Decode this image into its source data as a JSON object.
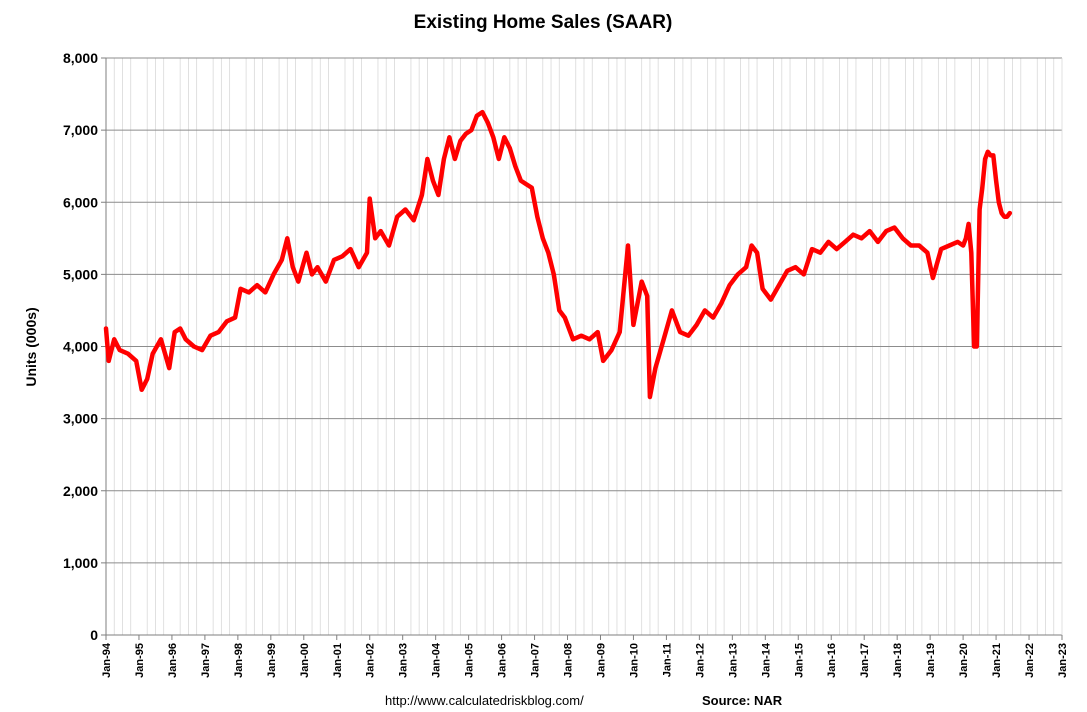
{
  "colors": {
    "series": "#ff0000",
    "grid_major": "#8c8c8c",
    "grid_minor": "#d9d9d9",
    "axis": "#7f7f7f"
  },
  "footer": {
    "url": "http://www.calculatedriskblog.com/",
    "source": "Source: NAR"
  },
  "chart_data": {
    "type": "line",
    "title": "Existing Home Sales (SAAR)",
    "xlabel": "",
    "ylabel": "Units (000s)",
    "ylim": [
      0,
      8000
    ],
    "xlim": [
      "1994-01",
      "2023-01"
    ],
    "grid": true,
    "legend": "none",
    "yticks": [
      0,
      1000,
      2000,
      3000,
      4000,
      5000,
      6000,
      7000,
      8000
    ],
    "ytick_labels": [
      "0",
      "1,000",
      "2,000",
      "3,000",
      "4,000",
      "5,000",
      "6,000",
      "7,000",
      "8,000"
    ],
    "xticks": [
      "1994-01",
      "1995-01",
      "1996-01",
      "1997-01",
      "1998-01",
      "1999-01",
      "2000-01",
      "2001-01",
      "2002-01",
      "2003-01",
      "2004-01",
      "2005-01",
      "2006-01",
      "2007-01",
      "2008-01",
      "2009-01",
      "2010-01",
      "2011-01",
      "2012-01",
      "2013-01",
      "2014-01",
      "2015-01",
      "2016-01",
      "2017-01",
      "2018-01",
      "2019-01",
      "2020-01",
      "2021-01",
      "2022-01",
      "2023-01"
    ],
    "xtick_labels": [
      "Jan-94",
      "Jan-95",
      "Jan-96",
      "Jan-97",
      "Jan-98",
      "Jan-99",
      "Jan-00",
      "Jan-01",
      "Jan-02",
      "Jan-03",
      "Jan-04",
      "Jan-05",
      "Jan-06",
      "Jan-07",
      "Jan-08",
      "Jan-09",
      "Jan-10",
      "Jan-11",
      "Jan-12",
      "Jan-13",
      "Jan-14",
      "Jan-15",
      "Jan-16",
      "Jan-17",
      "Jan-18",
      "Jan-19",
      "Jan-20",
      "Jan-21",
      "Jan-22",
      "Jan-23"
    ],
    "series": [
      {
        "x": [
          "1994-01",
          "1994-02",
          "1994-04",
          "1994-06",
          "1994-09",
          "1994-12",
          "1995-02",
          "1995-04",
          "1995-06",
          "1995-09",
          "1995-12",
          "1996-02",
          "1996-04",
          "1996-06",
          "1996-09",
          "1996-12",
          "1997-03",
          "1997-06",
          "1997-09",
          "1997-12",
          "1998-02",
          "1998-05",
          "1998-08",
          "1998-11",
          "1999-02",
          "1999-05",
          "1999-07",
          "1999-09",
          "1999-11",
          "2000-02",
          "2000-04",
          "2000-06",
          "2000-09",
          "2000-12",
          "2001-03",
          "2001-06",
          "2001-09",
          "2001-12",
          "2002-01",
          "2002-03",
          "2002-05",
          "2002-08",
          "2002-11",
          "2003-02",
          "2003-05",
          "2003-08",
          "2003-10",
          "2003-12",
          "2004-02",
          "2004-04",
          "2004-06",
          "2004-08",
          "2004-10",
          "2004-12",
          "2005-02",
          "2005-04",
          "2005-06",
          "2005-08",
          "2005-10",
          "2005-12",
          "2006-02",
          "2006-04",
          "2006-06",
          "2006-08",
          "2006-10",
          "2006-12",
          "2007-02",
          "2007-04",
          "2007-06",
          "2007-08",
          "2007-10",
          "2007-12",
          "2008-03",
          "2008-06",
          "2008-09",
          "2008-12",
          "2009-02",
          "2009-05",
          "2009-08",
          "2009-11",
          "2010-01",
          "2010-04",
          "2010-06",
          "2010-07",
          "2010-09",
          "2010-12",
          "2011-03",
          "2011-06",
          "2011-09",
          "2011-12",
          "2012-03",
          "2012-06",
          "2012-09",
          "2012-12",
          "2013-03",
          "2013-06",
          "2013-08",
          "2013-10",
          "2013-12",
          "2014-03",
          "2014-06",
          "2014-09",
          "2014-12",
          "2015-03",
          "2015-06",
          "2015-09",
          "2015-12",
          "2016-03",
          "2016-06",
          "2016-09",
          "2016-12",
          "2017-03",
          "2017-06",
          "2017-09",
          "2017-12",
          "2018-03",
          "2018-06",
          "2018-09",
          "2018-12",
          "2019-02",
          "2019-05",
          "2019-08",
          "2019-11",
          "2020-01",
          "2020-02",
          "2020-03",
          "2020-04",
          "2020-05",
          "2020-06",
          "2020-07",
          "2020-08",
          "2020-09",
          "2020-10",
          "2020-11",
          "2020-12",
          "2021-01",
          "2021-02",
          "2021-03",
          "2021-04",
          "2021-05",
          "2021-06"
        ],
        "values": [
          4250,
          3800,
          4100,
          3950,
          3900,
          3800,
          3400,
          3550,
          3900,
          4100,
          3700,
          4200,
          4250,
          4100,
          4000,
          3950,
          4150,
          4200,
          4350,
          4400,
          4800,
          4750,
          4850,
          4750,
          5000,
          5200,
          5500,
          5100,
          4900,
          5300,
          5000,
          5100,
          4900,
          5200,
          5250,
          5350,
          5100,
          5300,
          6050,
          5500,
          5600,
          5400,
          5800,
          5900,
          5750,
          6100,
          6600,
          6300,
          6100,
          6600,
          6900,
          6600,
          6850,
          6950,
          7000,
          7200,
          7250,
          7100,
          6900,
          6600,
          6900,
          6750,
          6500,
          6300,
          6250,
          6200,
          5800,
          5500,
          5300,
          5000,
          4500,
          4400,
          4100,
          4150,
          4100,
          4200,
          3800,
          3950,
          4200,
          5400,
          4300,
          4900,
          4700,
          3300,
          3700,
          4100,
          4500,
          4200,
          4150,
          4300,
          4500,
          4400,
          4600,
          4850,
          5000,
          5100,
          5400,
          5300,
          4800,
          4650,
          4850,
          5050,
          5100,
          5000,
          5350,
          5300,
          5450,
          5350,
          5450,
          5550,
          5500,
          5600,
          5450,
          5600,
          5650,
          5500,
          5400,
          5400,
          5300,
          4950,
          5350,
          5400,
          5450,
          5400,
          5500,
          5700,
          5300,
          4000,
          4000,
          5900,
          6200,
          6600,
          6700,
          6650,
          6650,
          6300,
          6000,
          5850,
          5800,
          5800,
          5850
        ]
      }
    ]
  }
}
